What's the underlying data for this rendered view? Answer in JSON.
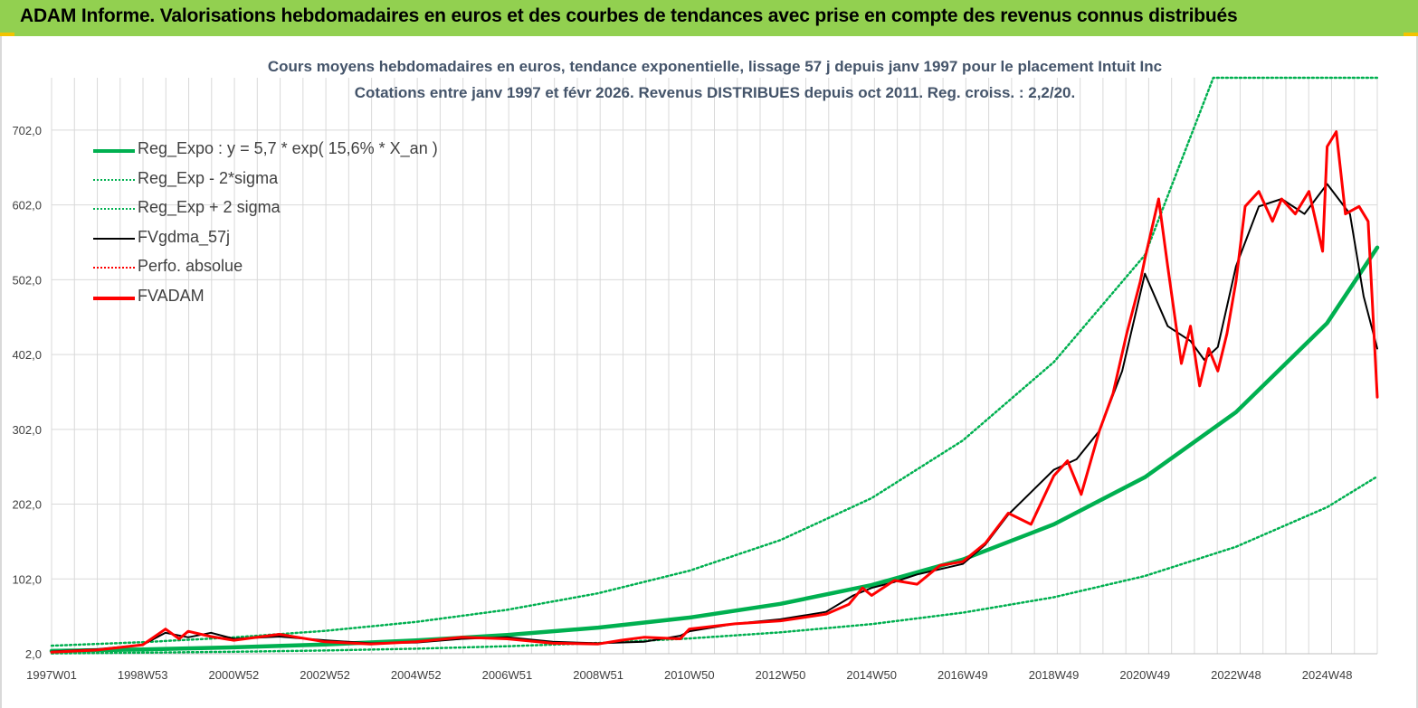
{
  "header": {
    "title": "ADAM Informe. Valorisations hebdomadaires en euros et des courbes de tendances avec prise en compte des revenus connus distribués"
  },
  "colors": {
    "header_bg": "#92d050",
    "accent": "#f2c400",
    "reg_expo": "#00b050",
    "fvgdma": "#000000",
    "fvadam": "#ff0000",
    "title_text": "#44546a",
    "grid": "#d9d9d9"
  },
  "chart_data": {
    "type": "line",
    "title_line1": "Cours moyens hebdomadaires en euros, tendance exponentielle, lissage 57 j depuis janv 1997 pour le placement Intuit Inc",
    "title_line2": "Cotations entre janv 1997 et févr 2026. Revenus DISTRIBUES depuis oct 2011. Reg. croiss. : 2,2/20.",
    "xlabel": "",
    "ylabel": "",
    "x_tick_labels": [
      "1997W01",
      "1998W53",
      "2000W52",
      "2002W52",
      "2004W52",
      "2006W51",
      "2008W51",
      "2010W50",
      "2012W50",
      "2014W50",
      "2016W49",
      "2018W49",
      "2020W49",
      "2022W48",
      "2024W48"
    ],
    "x_range": [
      1997.0,
      2026.1
    ],
    "y_tick_labels": [
      "2,0",
      "102,0",
      "202,0",
      "302,0",
      "402,0",
      "502,0",
      "602,0",
      "702,0"
    ],
    "ylim": [
      2,
      772
    ],
    "grid": true,
    "legend_position": "top-left",
    "legend": [
      {
        "label": "Reg_Expo : y = 5,7 * exp( 15,6% *  X_an )",
        "color": "#00b050",
        "style": "solid-thick"
      },
      {
        "label": "Reg_Exp - 2*sigma",
        "color": "#00b050",
        "style": "dotted"
      },
      {
        "label": "Reg_Exp + 2 sigma",
        "color": "#00b050",
        "style": "dotted"
      },
      {
        "label": "FVgdma_57j",
        "color": "#000000",
        "style": "solid"
      },
      {
        "label": "Perfo. absolue",
        "color": "#ff0000",
        "style": "dotted"
      },
      {
        "label": "FVADAM",
        "color": "#ff0000",
        "style": "solid-thick"
      }
    ],
    "regression": {
      "a": 5.7,
      "b": 0.156,
      "x0": 1997.0
    },
    "series": [
      {
        "name": "Reg_Expo : y = 5,7 * exp( 15,6% *  X_an )",
        "x": [
          1997,
          1999,
          2001,
          2003,
          2005,
          2007,
          2009,
          2011,
          2013,
          2015,
          2017,
          2019,
          2021,
          2023,
          2025,
          2026.1
        ],
        "values": [
          5.7,
          7.8,
          10.6,
          14.5,
          19.8,
          27.0,
          36.9,
          50.3,
          68.7,
          93.7,
          128,
          175,
          238,
          325,
          444,
          545
        ]
      },
      {
        "name": "Reg_Exp - 2*sigma",
        "x": [
          1997,
          1999,
          2001,
          2003,
          2005,
          2007,
          2009,
          2011,
          2013,
          2015,
          2017,
          2019,
          2021,
          2023,
          2025,
          2026.1
        ],
        "values": [
          2.5,
          3.5,
          4.7,
          6.4,
          8.8,
          12,
          16.4,
          22.4,
          30.6,
          41.7,
          56.9,
          77.6,
          106,
          145,
          198,
          239
        ]
      },
      {
        "name": "Reg_Exp + 2 sigma",
        "x": [
          1997,
          1999,
          2001,
          2003,
          2005,
          2007,
          2009,
          2011,
          2013,
          2015,
          2017,
          2019,
          2021,
          2022.5,
          2024,
          2026.1
        ],
        "values": [
          12.8,
          17.5,
          23.9,
          32.6,
          44.5,
          60.8,
          82.9,
          113,
          154,
          210,
          287,
          392,
          535,
          772,
          772,
          772
        ]
      },
      {
        "name": "FVgdma_57j",
        "x": [
          1997,
          1998,
          1999,
          1999.5,
          2000,
          2000.5,
          2001,
          2002,
          2003,
          2004,
          2005,
          2006,
          2007,
          2008,
          2009,
          2010,
          2010.8,
          2011,
          2012,
          2013,
          2014,
          2014.6,
          2015,
          2015.5,
          2016,
          2017,
          2017.5,
          2018,
          2018.5,
          2019,
          2019.5,
          2020,
          2020.5,
          2021,
          2021.5,
          2022,
          2022.3,
          2022.6,
          2023,
          2023.5,
          2024,
          2024.5,
          2025,
          2025.5,
          2025.8,
          2026.1
        ],
        "values": [
          5,
          8,
          14,
          30,
          24,
          30,
          22,
          25,
          20,
          16,
          17,
          22,
          24,
          18,
          16,
          18,
          26,
          32,
          42,
          48,
          58,
          80,
          90,
          98,
          108,
          122,
          148,
          188,
          218,
          248,
          262,
          300,
          380,
          510,
          440,
          420,
          395,
          412,
          520,
          600,
          610,
          590,
          630,
          590,
          480,
          410
        ]
      },
      {
        "name": "FVADAM",
        "x": [
          1997,
          1998,
          1999,
          1999.5,
          1999.8,
          2000,
          2000.5,
          2001,
          2002,
          2003,
          2004,
          2005,
          2006,
          2007,
          2008,
          2009,
          2009.5,
          2010,
          2010.8,
          2011,
          2012,
          2013,
          2014,
          2014.5,
          2014.8,
          2015,
          2015.5,
          2016,
          2016.5,
          2017,
          2017.5,
          2018,
          2018.5,
          2019,
          2019.3,
          2019.6,
          2020,
          2020.3,
          2020.6,
          2020.9,
          2021,
          2021.3,
          2021.5,
          2021.8,
          2022,
          2022.2,
          2022.4,
          2022.6,
          2022.8,
          2023,
          2023.2,
          2023.5,
          2023.8,
          2024,
          2024.3,
          2024.6,
          2024.9,
          2025,
          2025.2,
          2025.4,
          2025.7,
          2025.9,
          2026.1
        ],
        "values": [
          4,
          7,
          14,
          35,
          22,
          32,
          25,
          20,
          28,
          18,
          15,
          18,
          24,
          22,
          16,
          15,
          20,
          24,
          22,
          35,
          42,
          46,
          55,
          68,
          90,
          80,
          100,
          95,
          120,
          125,
          150,
          190,
          175,
          240,
          260,
          215,
          300,
          350,
          430,
          500,
          530,
          610,
          520,
          390,
          440,
          360,
          410,
          380,
          430,
          500,
          600,
          620,
          580,
          610,
          590,
          620,
          540,
          680,
          700,
          590,
          600,
          580,
          345
        ]
      }
    ]
  }
}
